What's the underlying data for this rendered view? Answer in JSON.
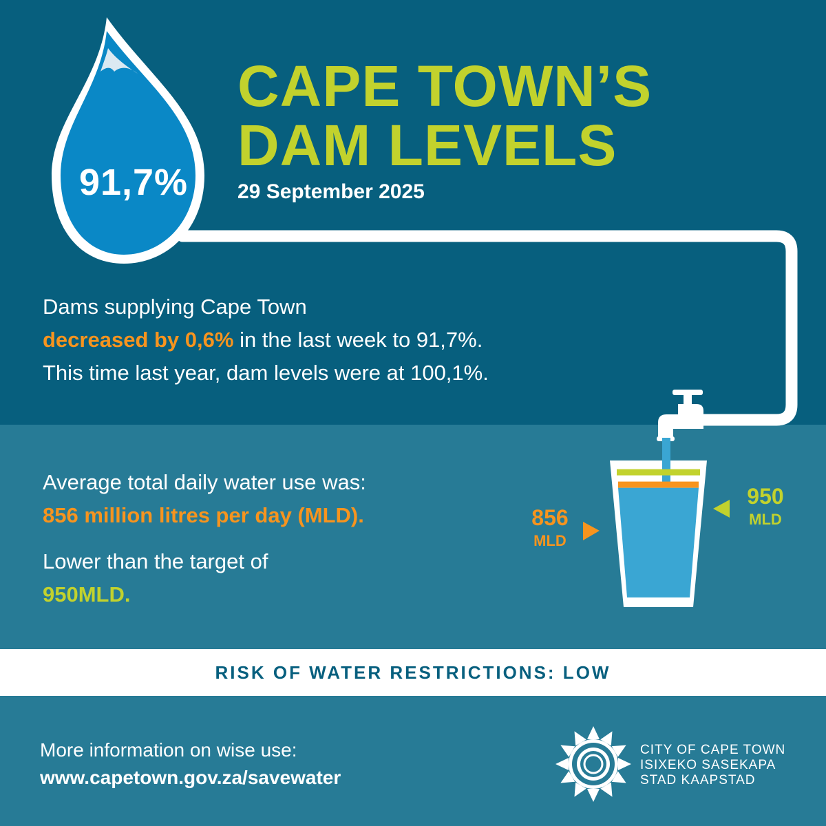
{
  "title": {
    "line1": "CAPE TOWN’S",
    "line2": "DAM LEVELS"
  },
  "date": "29 September 2025",
  "dam_level": "91,7%",
  "summary": {
    "line1": "Dams supplying Cape Town",
    "change_highlight": "decreased by 0,6%",
    "line2_rest": " in the last week to 91,7%.",
    "line3": "This time last year, dam levels were at 100,1%."
  },
  "usage": {
    "intro": "Average total daily water use was:",
    "value": "856 million litres per day (MLD).",
    "target_intro": "Lower than the target of",
    "target": "950MLD."
  },
  "glass": {
    "actual_value": "856",
    "actual_unit": "MLD",
    "target_value": "950",
    "target_unit": "MLD",
    "actual_fill": 0.856,
    "target_fill": 0.95
  },
  "risk": "RISK OF WATER RESTRICTIONS: LOW",
  "footer": {
    "info": "More information on wise use:",
    "url": "www.capetown.gov.za/savewater",
    "org_line1": "CITY OF CAPE TOWN",
    "org_line2": "ISIXEKO SASEKAPA",
    "org_line3": "STAD KAAPSTAD"
  },
  "colors": {
    "top_bg": "#075f7e",
    "mid_bg": "#277b96",
    "accent_green": "#c2d22d",
    "accent_orange": "#f7941e",
    "water_blue": "#3aa6d3"
  },
  "icons": [
    "water-drop-icon",
    "water-pipe-icon",
    "tap-icon",
    "glass-icon",
    "city-logo-icon"
  ]
}
